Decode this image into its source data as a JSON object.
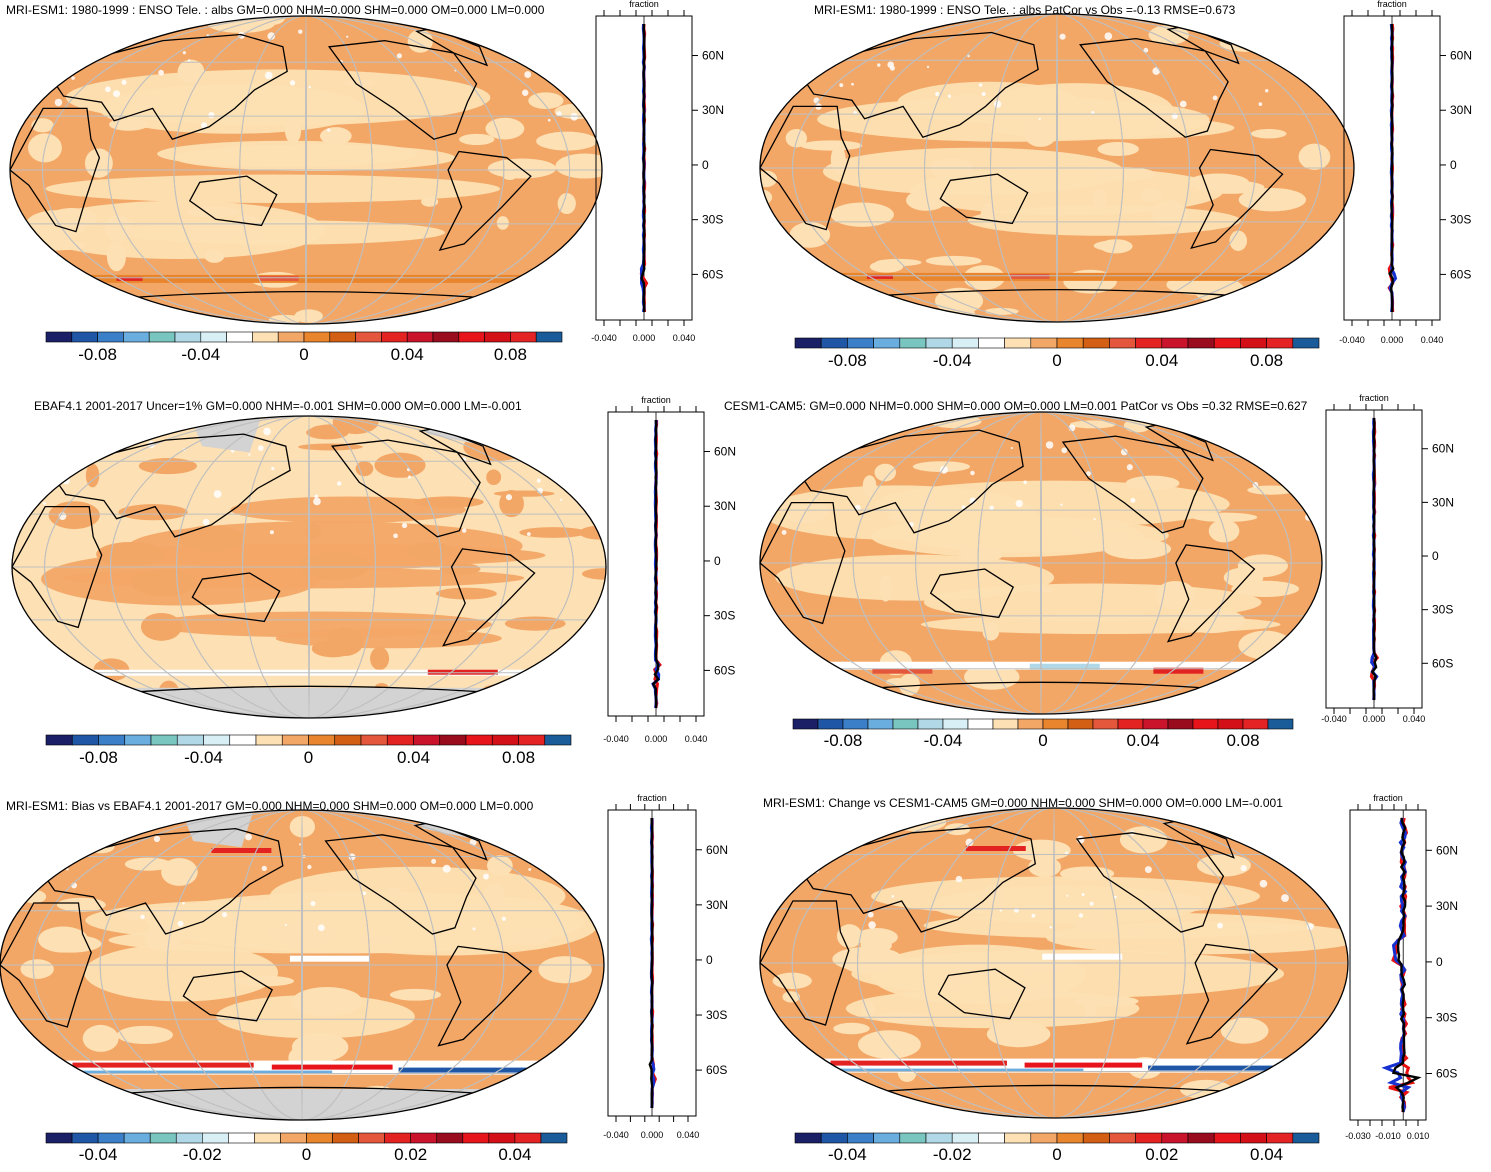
{
  "chart_data": [
    {
      "type": "heatmap",
      "title": "MRI-ESM1: 1980-1999 : ENSO Tele. : albs GM=0.000 NHM=0.000 SHM=0.000 OM=0.000 LM=0.000",
      "colorbar": {
        "range": [
          -0.1,
          0.1
        ],
        "tick_labels": [
          "-0.08",
          "-0.04",
          "0",
          "0.04",
          "0.08"
        ]
      },
      "zonal_profile": {
        "xlabel": "fraction",
        "xticks": [
          "-0.040",
          "0.000",
          "0.040"
        ],
        "xlim": [
          -0.06,
          0.06
        ],
        "lat_labels": [
          "60N",
          "30N",
          "0",
          "30S",
          "60S"
        ]
      },
      "pattern": 0
    },
    {
      "type": "heatmap",
      "title": "MRI-ESM1: 1980-1999 : ENSO Tele. : albs PatCor vs Obs =-0.13 RMSE=0.673",
      "colorbar": {
        "range": [
          -0.1,
          0.1
        ],
        "tick_labels": [
          "-0.08",
          "-0.04",
          "0",
          "0.04",
          "0.08"
        ]
      },
      "zonal_profile": {
        "xlabel": "fraction",
        "xticks": [
          "-0.040",
          "0.000",
          "0.040"
        ],
        "xlim": [
          -0.06,
          0.06
        ],
        "lat_labels": [
          "60N",
          "30N",
          "0",
          "30S",
          "60S"
        ]
      },
      "pattern": 0
    },
    {
      "type": "heatmap",
      "title": "EBAF4.1 2001-2017 Uncer=1% GM=0.000 NHM=-0.001 SHM=0.000 OM=0.000 LM=-0.001",
      "colorbar": {
        "range": [
          -0.1,
          0.1
        ],
        "tick_labels": [
          "-0.08",
          "-0.04",
          "0",
          "0.04",
          "0.08"
        ]
      },
      "zonal_profile": {
        "xlabel": "fraction",
        "xticks": [
          "-0.040",
          "0.000",
          "0.040"
        ],
        "xlim": [
          -0.06,
          0.06
        ],
        "lat_labels": [
          "60N",
          "30N",
          "0",
          "30S",
          "60S"
        ]
      },
      "pattern": 1
    },
    {
      "type": "heatmap",
      "title": "CESM1-CAM5: GM=0.000 NHM=0.000 SHM=0.000 OM=0.000 LM=0.001 PatCor vs Obs =0.32 RMSE=0.627",
      "colorbar": {
        "range": [
          -0.1,
          0.1
        ],
        "tick_labels": [
          "-0.08",
          "-0.04",
          "0",
          "0.04",
          "0.08"
        ]
      },
      "zonal_profile": {
        "xlabel": "fraction",
        "xticks": [
          "-0.040",
          "0.000",
          "0.040"
        ],
        "xlim": [
          -0.06,
          0.06
        ],
        "lat_labels": [
          "60N",
          "30N",
          "0",
          "30S",
          "60S"
        ]
      },
      "pattern": 2
    },
    {
      "type": "heatmap",
      "title": "MRI-ESM1: Bias vs EBAF4.1 2001-2017 GM=0.000 NHM=0.000 SHM=0.000 OM=0.000 LM=0.000",
      "colorbar": {
        "range": [
          -0.05,
          0.05
        ],
        "tick_labels": [
          "-0.04",
          "-0.02",
          "0",
          "0.02",
          "0.04"
        ]
      },
      "zonal_profile": {
        "xlabel": "fraction",
        "xticks": [
          "-0.040",
          "0.000",
          "0.040"
        ],
        "xlim": [
          -0.06,
          0.06
        ],
        "lat_labels": [
          "60N",
          "30N",
          "0",
          "30S",
          "60S"
        ]
      },
      "pattern": 3
    },
    {
      "type": "heatmap",
      "title": "MRI-ESM1: Change vs CESM1-CAM5 GM=0.000 NHM=0.000 SHM=0.000 OM=0.000 LM=-0.001",
      "colorbar": {
        "range": [
          -0.05,
          0.05
        ],
        "tick_labels": [
          "-0.04",
          "-0.02",
          "0",
          "0.02",
          "0.04"
        ]
      },
      "zonal_profile": {
        "xlabel": "fraction",
        "xticks": [
          "-0.030",
          "-0.010",
          "0.010"
        ],
        "xlim": [
          -0.035,
          0.015
        ],
        "lat_labels": [
          "60N",
          "30N",
          "0",
          "30S",
          "60S"
        ]
      },
      "pattern": 4
    }
  ],
  "colors": {
    "palette": [
      "#1a1f66",
      "#1f57a6",
      "#3a7fc7",
      "#6aaee0",
      "#79c6c0",
      "#b0d8e6",
      "#d8f0f5",
      "#ffffff",
      "#fde0b3",
      "#f3a767",
      "#e9852d",
      "#d35f15",
      "#e4573c",
      "#e32321",
      "#c9142b",
      "#980c1e",
      "#e8141b",
      "#d31017",
      "#e42324",
      "#1a5c99"
    ],
    "land_outline": "#000000",
    "grid": "#bfbfbf",
    "missing": "#d3d3d3",
    "profile_model": "#000000",
    "profile_max": "#e81010",
    "profile_min": "#1530d0"
  }
}
